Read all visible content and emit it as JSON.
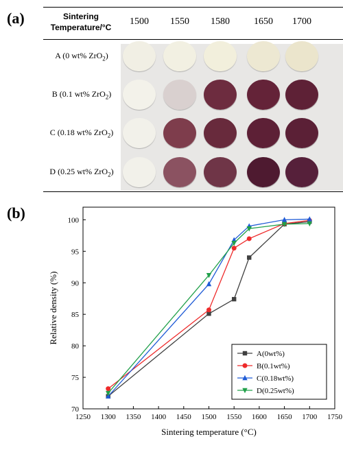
{
  "panel_a": {
    "label": "(a)",
    "header_title_line1": "Sintering",
    "header_title_line2": "Temperature/°C",
    "temperatures": [
      "1500",
      "1550",
      "1580",
      "1650",
      "1700"
    ],
    "rows": [
      {
        "label": "A (0 wt% ZrO",
        "sub": "2",
        "close": ")",
        "colors": [
          "#f1efe4",
          "#f2f0e2",
          "#f2efdc",
          "#ede8d2",
          "#ebe5cc"
        ]
      },
      {
        "label": "B (0.1 wt% ZrO",
        "sub": "2",
        "close": ")",
        "colors": [
          "#f3f2ea",
          "#d9d0cf",
          "#6d2c3f",
          "#642338",
          "#5e2136"
        ]
      },
      {
        "label": "C (0.18 wt% ZrO",
        "sub": "2",
        "close": ")",
        "colors": [
          "#f2f1ea",
          "#7e3d4c",
          "#682a3c",
          "#5d2036",
          "#5b2036"
        ]
      },
      {
        "label": "D (0.25 wt% ZrO",
        "sub": "2",
        "close": ")",
        "colors": [
          "#f2f1ea",
          "#8b5261",
          "#6f3547",
          "#4e1a30",
          "#56203a"
        ]
      }
    ]
  },
  "panel_b": {
    "label": "(b)"
  },
  "chart_data": {
    "type": "line",
    "xlabel": "Sintering temperature (°C)",
    "ylabel": "Relative density (%)",
    "xlim": [
      1250,
      1750
    ],
    "ylim": [
      70,
      102
    ],
    "xticks": [
      1250,
      1300,
      1350,
      1400,
      1450,
      1500,
      1550,
      1600,
      1650,
      1700,
      1750
    ],
    "yticks": [
      70,
      75,
      80,
      85,
      90,
      95,
      100
    ],
    "legend_position": "bottom-right",
    "series": [
      {
        "name": "A(0wt%)",
        "color": "#404040",
        "marker": "square",
        "x": [
          1300,
          1500,
          1550,
          1580,
          1650,
          1700
        ],
        "y": [
          72.0,
          85.1,
          87.4,
          94.0,
          99.3,
          99.7
        ]
      },
      {
        "name": "B(0.1wt%)",
        "color": "#ee2a2a",
        "marker": "circle",
        "x": [
          1300,
          1500,
          1550,
          1580,
          1650,
          1700
        ],
        "y": [
          73.2,
          85.7,
          95.5,
          97.0,
          99.4,
          99.9
        ]
      },
      {
        "name": "C(0.18wt%)",
        "color": "#1f5bd6",
        "marker": "triangle-up",
        "x": [
          1300,
          1500,
          1550,
          1580,
          1650,
          1700
        ],
        "y": [
          72.0,
          89.8,
          96.8,
          99.0,
          100.0,
          100.1
        ]
      },
      {
        "name": "D(0.25wt%)",
        "color": "#21a04a",
        "marker": "triangle-down",
        "x": [
          1300,
          1500,
          1550,
          1580,
          1650,
          1700
        ],
        "y": [
          72.5,
          91.2,
          96.3,
          98.6,
          99.3,
          99.4
        ]
      }
    ]
  }
}
